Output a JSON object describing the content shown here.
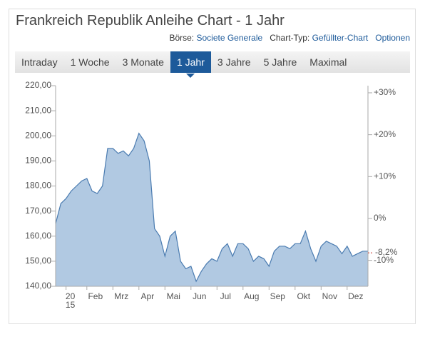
{
  "header": {
    "title": "Frankreich Republik Anleihe Chart - 1 Jahr",
    "boerse_label": "Börse:",
    "boerse_value": "Societe Generale",
    "charttyp_label": "Chart-Typ:",
    "charttyp_value": "Gefüllter-Chart",
    "options": "Optionen"
  },
  "tabs": [
    "Intraday",
    "1 Woche",
    "3 Monate",
    "1 Jahr",
    "3 Jahre",
    "5 Jahre",
    "Maximal"
  ],
  "active_tab": "1 Jahr",
  "chart_data": {
    "type": "area",
    "line_color": "#4a7bb0",
    "fill_color": "#a9c3df",
    "categories": [
      null,
      null,
      "20 15",
      null,
      null,
      null,
      "Feb",
      null,
      null,
      null,
      null,
      "Mrz",
      null,
      null,
      null,
      null,
      "Apr",
      null,
      null,
      null,
      null,
      "Mai",
      null,
      null,
      null,
      null,
      "Jun",
      null,
      null,
      null,
      null,
      "Jul",
      null,
      null,
      null,
      null,
      "Aug",
      null,
      null,
      null,
      null,
      "Sep",
      null,
      null,
      null,
      null,
      "Okt",
      null,
      null,
      null,
      null,
      "Nov",
      null,
      null,
      null,
      null,
      "Dez",
      null,
      null,
      null,
      null
    ],
    "values": [
      165,
      173,
      175,
      178,
      180,
      182,
      183,
      178,
      177,
      180,
      195,
      195,
      193,
      194,
      192,
      195,
      201,
      198,
      190,
      163,
      160,
      152,
      160,
      162,
      150,
      147,
      148,
      142,
      146,
      149,
      151,
      150,
      155,
      157,
      152,
      157,
      157,
      155,
      150,
      152,
      151,
      148,
      154,
      156,
      156,
      155,
      157,
      157,
      162,
      155,
      150,
      156,
      158,
      157,
      156,
      153,
      156,
      152,
      153,
      154,
      154
    ],
    "ylim": [
      140,
      220
    ],
    "yticks": [
      {
        "value": 140,
        "label": "140,00"
      },
      {
        "value": 150,
        "label": "150,00"
      },
      {
        "value": 160,
        "label": "160,00"
      },
      {
        "value": 170,
        "label": "170,00"
      },
      {
        "value": 180,
        "label": "180,00"
      },
      {
        "value": 190,
        "label": "190,00"
      },
      {
        "value": 200,
        "label": "200,00"
      },
      {
        "value": 210,
        "label": "210,00"
      },
      {
        "value": 220,
        "label": "220,00"
      }
    ],
    "y2lim": [
      -16.2,
      31.7
    ],
    "y2ticks": [
      {
        "value": -10,
        "label": "-10%"
      },
      {
        "value": 0,
        "label": "0%"
      },
      {
        "value": 10,
        "label": "+10%"
      },
      {
        "value": 20,
        "label": "+20%"
      },
      {
        "value": 30,
        "label": "+30%"
      }
    ],
    "annotations": [
      {
        "value": -8.2,
        "label": "-8,2%",
        "axis": "y2",
        "color": "#c8352e"
      }
    ]
  }
}
